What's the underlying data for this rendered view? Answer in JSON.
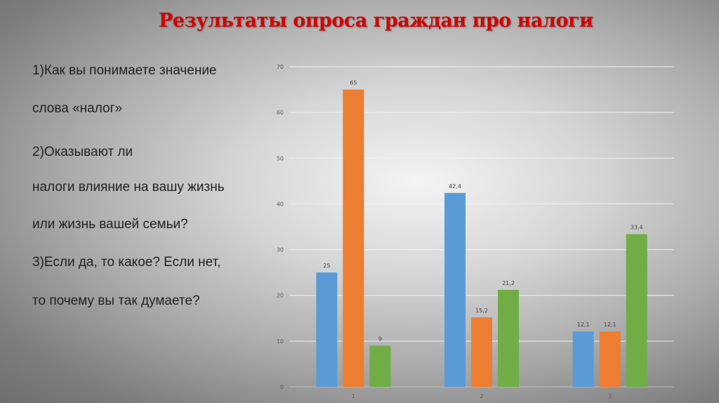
{
  "slide": {
    "title": "Результаты опроса граждан про налоги",
    "question_lines": [
      "1)Как вы понимаете значение",
      "слова «налог»",
      "2)Оказывают ли",
      "налоги влияние на вашу жизнь",
      "или жизнь вашей семьи?",
      "3)Если да, то какое? Если нет,",
      "то почему вы так думаете?"
    ]
  },
  "chart_data": {
    "type": "bar",
    "categories": [
      "1",
      "2",
      "3"
    ],
    "series": [
      {
        "color": "#5b9bd5",
        "values": [
          25,
          42.4,
          12.1
        ]
      },
      {
        "color": "#ed7d31",
        "values": [
          65,
          15.2,
          12.1
        ]
      },
      {
        "color": "#70ad47",
        "values": [
          9,
          21.2,
          33.4
        ]
      }
    ],
    "data_labels": [
      [
        "25",
        "42,4",
        "12,1"
      ],
      [
        "65",
        "15,2",
        "12,1"
      ],
      [
        "9",
        "21,2",
        "33,4"
      ]
    ],
    "y_ticks": [
      "0",
      "10",
      "20",
      "30",
      "40",
      "50",
      "60",
      "70"
    ],
    "ylim": [
      0,
      70
    ],
    "grid": true,
    "legend": "none"
  }
}
